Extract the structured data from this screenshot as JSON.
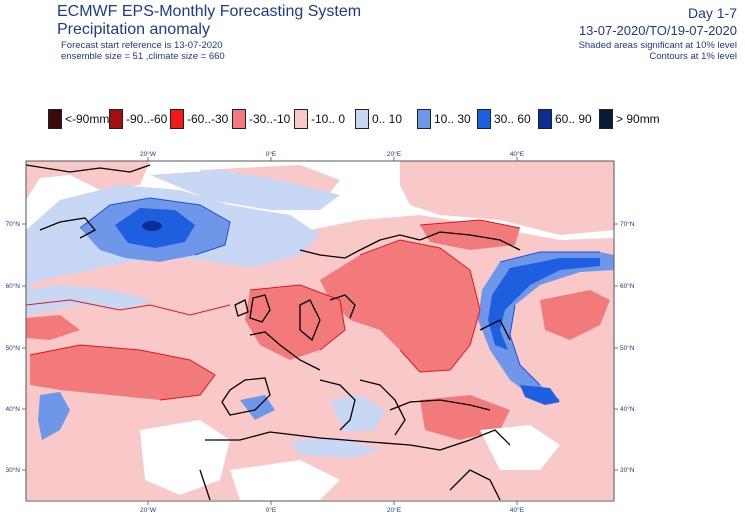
{
  "header": {
    "title": "ECMWF EPS-Monthly Forecasting System",
    "subtitle": "Precipitation anomaly",
    "forecast_start": "Forecast start reference is 13-07-2020",
    "ensemble": "ensemble size = 51  ,climate size = 660",
    "day_range": "Day 1-7",
    "date_range": "13-07-2020/TO/19-07-2020",
    "note_shaded": "Shaded areas significant at 10% level",
    "note_contours": "Contours at 1% level"
  },
  "legend": [
    {
      "label": "<-90mm",
      "color": "#3a0a0a"
    },
    {
      "label": "-90..-60",
      "color": "#a01010"
    },
    {
      "label": "-60..-30",
      "color": "#f01a1a"
    },
    {
      "label": "-30..-10",
      "color": "#f27a7a"
    },
    {
      "label": "-10.. 0",
      "color": "#f9c9c9"
    },
    {
      "label": "0.. 10",
      "color": "#c8d8f4"
    },
    {
      "label": "10.. 30",
      "color": "#6e97ea"
    },
    {
      "label": "30.. 60",
      "color": "#1e5fe0"
    },
    {
      "label": "60.. 90",
      "color": "#0b2e96"
    },
    {
      "label": "> 90mm",
      "color": "#061a3a"
    }
  ],
  "map": {
    "lon_labels_top": [
      "20°W",
      "0°E",
      "20°E",
      "40°E"
    ],
    "lon_labels_bottom": [
      "20°W",
      "0°E",
      "20°E",
      "40°E"
    ],
    "lat_labels_left": [
      "70°N",
      "60°N",
      "50°N",
      "40°N",
      "30°N"
    ],
    "lat_labels_right": [
      "70°N",
      "60°N",
      "50°N",
      "40°N",
      "30°N"
    ]
  }
}
